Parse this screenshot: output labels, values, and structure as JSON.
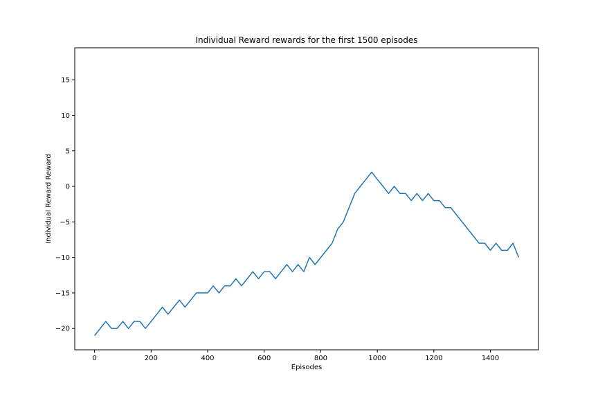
{
  "chart_data": {
    "type": "line",
    "title": "Individual Reward rewards for the first 1500 episodes",
    "xlabel": "Episodes",
    "ylabel": "Individual Reward Reward",
    "xlim": [
      -70,
      1570
    ],
    "ylim": [
      -23,
      19.5
    ],
    "xticks": [
      0,
      200,
      400,
      600,
      800,
      1000,
      1200,
      1400
    ],
    "yticks": [
      -20,
      -15,
      -10,
      -5,
      0,
      5,
      10,
      15
    ],
    "grid": false,
    "legend": "none",
    "series": [
      {
        "color": "#1f77b4",
        "x": [
          0,
          20,
          40,
          60,
          80,
          100,
          120,
          140,
          160,
          180,
          200,
          220,
          240,
          260,
          280,
          300,
          320,
          340,
          360,
          380,
          400,
          420,
          440,
          460,
          480,
          500,
          520,
          540,
          560,
          580,
          600,
          620,
          640,
          660,
          680,
          700,
          720,
          740,
          760,
          780,
          800,
          820,
          840,
          860,
          880,
          900,
          920,
          940,
          960,
          980,
          1000,
          1020,
          1040,
          1060,
          1080,
          1100,
          1120,
          1140,
          1160,
          1180,
          1200,
          1220,
          1240,
          1260,
          1280,
          1300,
          1320,
          1340,
          1360,
          1380,
          1400,
          1420,
          1440,
          1460,
          1480,
          1500
        ],
        "y": [
          -21,
          -20,
          -19,
          -20,
          -20,
          -19,
          -20,
          -19,
          -19,
          -20,
          -19,
          -18,
          -17,
          -18,
          -17,
          -16,
          -17,
          -16,
          -15,
          -15,
          -15,
          -14,
          -15,
          -14,
          -14,
          -13,
          -14,
          -13,
          -12,
          -13,
          -12,
          -12,
          -13,
          -12,
          -11,
          -12,
          -11,
          -12,
          -10,
          -11,
          -10,
          -9,
          -8,
          -6,
          -5,
          -3,
          -1,
          0,
          1,
          2,
          1,
          0,
          -1,
          0,
          -1,
          -1,
          -2,
          -1,
          -2,
          -1,
          -2,
          -2,
          -3,
          -3,
          -4,
          -5,
          -6,
          -7,
          -8,
          -8,
          -9,
          -8,
          -9,
          -9,
          -8,
          -10
        ]
      }
    ]
  }
}
